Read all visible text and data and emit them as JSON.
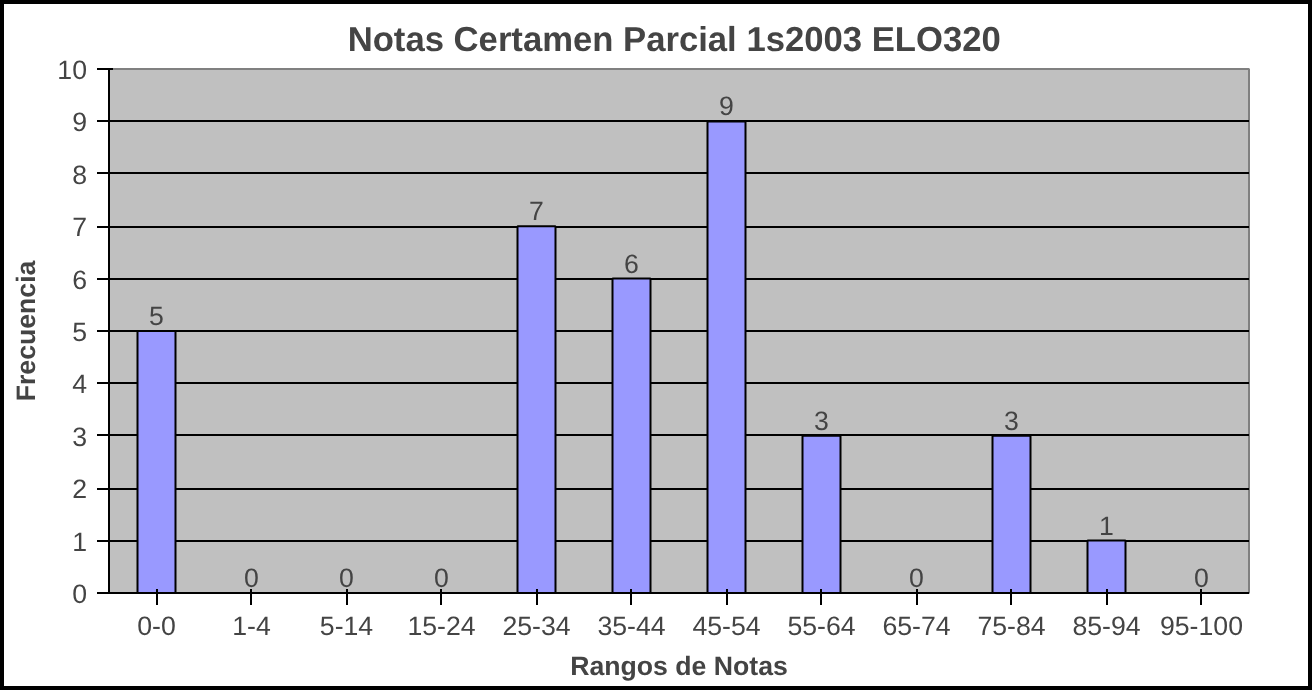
{
  "chart_data": {
    "type": "bar",
    "title": "Notas  Certamen Parcial 1s2003 ELO320",
    "xlabel": "Rangos de Notas",
    "ylabel": "Frecuencia",
    "categories": [
      "0-0",
      "1-4",
      "5-14",
      "15-24",
      "25-34",
      "35-44",
      "45-54",
      "55-64",
      "65-74",
      "75-84",
      "85-94",
      "95-100"
    ],
    "values": [
      5,
      0,
      0,
      0,
      7,
      6,
      9,
      3,
      0,
      3,
      1,
      0
    ],
    "color": "#9999ff",
    "ylim": [
      0,
      10
    ],
    "yticks": [
      0,
      1,
      2,
      3,
      4,
      5,
      6,
      7,
      8,
      9,
      10
    ],
    "grid": "y",
    "data_labels": true
  }
}
